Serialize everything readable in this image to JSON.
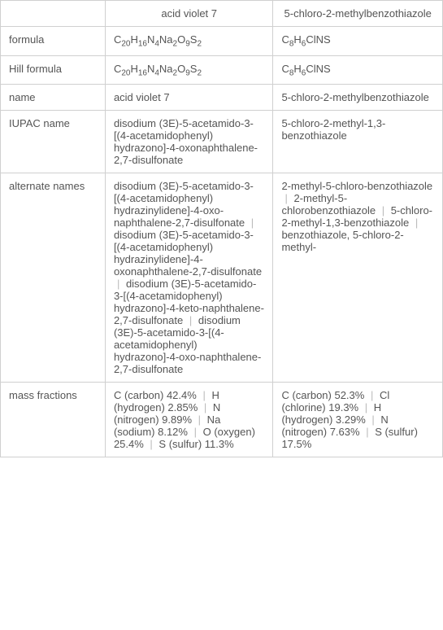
{
  "headers": {
    "col1": "acid violet 7",
    "col2": "5-chloro-2-methylbenzothiazole"
  },
  "rows": {
    "formula": {
      "label": "formula",
      "col1_html": "C<sub>20</sub>H<sub>16</sub>N<sub>4</sub>Na<sub>2</sub>O<sub>9</sub>S<sub>2</sub>",
      "col2_html": "C<sub>8</sub>H<sub>6</sub>ClNS"
    },
    "hill": {
      "label": "Hill formula",
      "col1_html": "C<sub>20</sub>H<sub>16</sub>N<sub>4</sub>Na<sub>2</sub>O<sub>9</sub>S<sub>2</sub>",
      "col2_html": "C<sub>8</sub>H<sub>6</sub>ClNS"
    },
    "name": {
      "label": "name",
      "col1": "acid violet 7",
      "col2": "5-chloro-2-methylbenzothiazole"
    },
    "iupac": {
      "label": "IUPAC name",
      "col1": "disodium (3E)-5-acetamido-3-[(4-acetamidophenyl) hydrazono]-4-oxonaphthalene-2,7-disulfonate",
      "col2": "5-chloro-2-methyl-1,3-benzothiazole"
    },
    "alternate": {
      "label": "alternate names",
      "col1_items": [
        "disodium (3E)-5-acetamido-3-[(4-acetamidophenyl) hydrazinylidene]-4-oxo-naphthalene-2,7-disulfonate",
        "disodium (3E)-5-acetamido-3-[(4-acetamidophenyl) hydrazinylidene]-4-oxonaphthalene-2,7-disulfonate",
        "disodium (3E)-5-acetamido-3-[(4-acetamidophenyl) hydrazono]-4-keto-naphthalene-2,7-disulfonate",
        "disodium (3E)-5-acetamido-3-[(4-acetamidophenyl) hydrazono]-4-oxo-naphthalene-2,7-disulfonate"
      ],
      "col2_items": [
        "2-methyl-5-chloro-benzothiazole",
        "2-methyl-5-chlorobenzothiazole",
        "5-chloro-2-methyl-1,3-benzothiazole",
        "benzothiazole, 5-chloro-2-methyl-"
      ]
    },
    "mass": {
      "label": "mass fractions",
      "col1_items": [
        "C (carbon) 42.4%",
        "H (hydrogen) 2.85%",
        "N (nitrogen) 9.89%",
        "Na (sodium) 8.12%",
        "O (oxygen) 25.4%",
        "S (sulfur) 11.3%"
      ],
      "col2_items": [
        "C (carbon) 52.3%",
        "Cl (chlorine) 19.3%",
        "H (hydrogen) 3.29%",
        "N (nitrogen) 7.63%",
        "S (sulfur) 17.5%"
      ]
    }
  }
}
